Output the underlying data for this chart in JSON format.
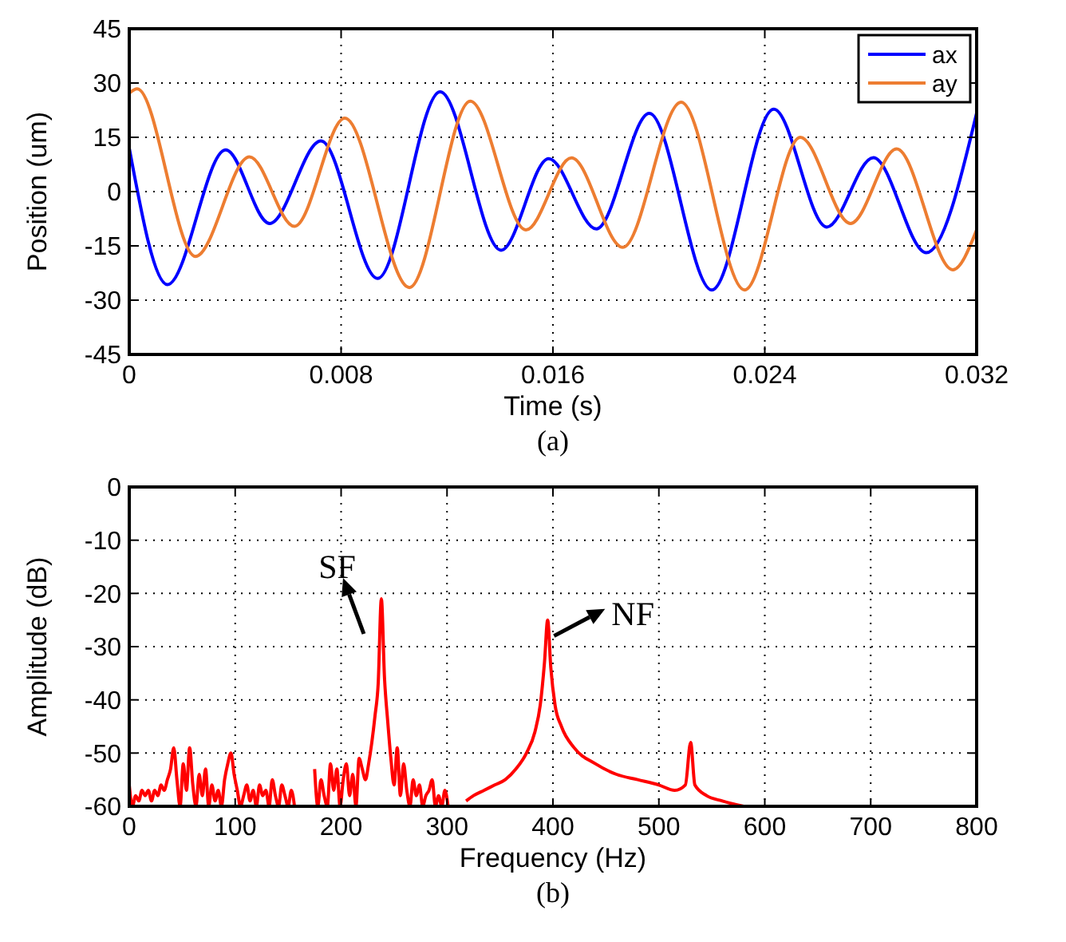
{
  "chart_data": [
    {
      "type": "line",
      "xlabel": "Time (s)",
      "ylabel": "Position (um)",
      "annotations": [
        "(a)"
      ],
      "xlim": [
        0,
        0.032
      ],
      "ylim": [
        -45,
        45
      ],
      "xticks": [
        0,
        0.008,
        0.016,
        0.024,
        0.032
      ],
      "yticks": [
        -45,
        -30,
        -15,
        0,
        15,
        30,
        45
      ],
      "grid": true,
      "legend": "top right",
      "series": [
        {
          "name": "ax",
          "color": "#0000ff",
          "x": [
            0,
            0.00144,
            0.00364,
            0.0053,
            0.00724,
            0.00938,
            0.01174,
            0.01404,
            0.01584,
            0.01764,
            0.01964,
            0.022,
            0.02434,
            0.02634,
            0.0281,
            0.0301,
            0.032
          ],
          "values": [
            12,
            -25.7,
            11.5,
            -8.8,
            14,
            -24,
            27.6,
            -16.2,
            9.1,
            -10.3,
            21.6,
            -27.2,
            22.8,
            -9.8,
            9.4,
            -16.9,
            21.7
          ]
        },
        {
          "name": "ay",
          "color": "#ed7d31",
          "x": [
            0,
            0.0003,
            0.0025,
            0.00454,
            0.00624,
            0.00814,
            0.01058,
            0.01288,
            0.01498,
            0.0167,
            0.01864,
            0.02084,
            0.02324,
            0.02534,
            0.02724,
            0.02898,
            0.0311,
            0.032
          ],
          "values": [
            27.2,
            28.4,
            -17.9,
            9.6,
            -9.6,
            20.3,
            -26.5,
            25,
            -10.6,
            9.3,
            -15.4,
            24.7,
            -27.2,
            15,
            -8.8,
            11.8,
            -21.6,
            -10.6
          ]
        }
      ]
    },
    {
      "type": "line",
      "xlabel": "Frequency (Hz)",
      "ylabel": "Amplitude (dB)",
      "annotations": [
        "(b)",
        {
          "text": "SF",
          "x": 238,
          "y": -21
        },
        {
          "text": "NF",
          "x": 395,
          "y": -25
        }
      ],
      "xlim": [
        0,
        800
      ],
      "ylim": [
        -60,
        0
      ],
      "xticks": [
        0,
        100,
        200,
        300,
        400,
        500,
        600,
        700,
        800
      ],
      "yticks": [
        -60,
        -50,
        -40,
        -30,
        -20,
        -10,
        0
      ],
      "grid": true,
      "series": [
        {
          "color": "#ff0000",
          "x": [
            0,
            3,
            6,
            9,
            12,
            15,
            18,
            21,
            24,
            27,
            30,
            33,
            36,
            39,
            42,
            45,
            48,
            51,
            54,
            57,
            60,
            63,
            66,
            69,
            72,
            75,
            78,
            81,
            84,
            87,
            90,
            93,
            96,
            99,
            102,
            105,
            108,
            111,
            114,
            117,
            120,
            123,
            126,
            129,
            132,
            135,
            138,
            141,
            144,
            147,
            150,
            153,
            156,
            165,
            175,
            178,
            181,
            184,
            187,
            190,
            193,
            196,
            199,
            202,
            205,
            208,
            211,
            214,
            217,
            220,
            223,
            226,
            229,
            232,
            235,
            238,
            241,
            244,
            247,
            250,
            253,
            256,
            259,
            262,
            265,
            268,
            271,
            274,
            277,
            280,
            283,
            286,
            289,
            292,
            295,
            298,
            301,
            310,
            318,
            325,
            335,
            345,
            355,
            365,
            375,
            383,
            388,
            392,
            395,
            398,
            402,
            408,
            420,
            440,
            460,
            480,
            500,
            515,
            525,
            530,
            534,
            545,
            560,
            580
          ],
          "values": [
            -56,
            -60,
            -58,
            -59,
            -57,
            -58,
            -57,
            -59,
            -57,
            -58,
            -56,
            -57,
            -55,
            -53,
            -49,
            -55,
            -60,
            -52,
            -57,
            -49,
            -56,
            -60,
            -54,
            -58,
            -53,
            -60,
            -56,
            -59,
            -57,
            -60,
            -55,
            -52,
            -50,
            -54,
            -57,
            -60,
            -58,
            -56,
            -59,
            -57,
            -60,
            -56,
            -58,
            -57,
            -60,
            -55,
            -58,
            -60,
            -56,
            -58,
            -60,
            -57,
            -60,
            null,
            -53,
            -60,
            -55,
            -58,
            -60,
            -52,
            -57,
            -53,
            -60,
            -55,
            -52,
            -58,
            -54,
            -60,
            -51,
            -53,
            -55,
            -52,
            -48,
            -43,
            -37,
            -21,
            -36,
            -44,
            -51,
            -56,
            -49,
            -58,
            -52,
            -57,
            -60,
            -55,
            -58,
            -56,
            -60,
            -58,
            -57,
            -55,
            -60,
            -58,
            -60,
            -57,
            -60,
            null,
            -59,
            -58,
            -57,
            -56,
            -55,
            -53,
            -50,
            -46,
            -41,
            -33,
            -25,
            -34,
            -41,
            -45,
            -49,
            -52,
            -54,
            -55,
            -56,
            -57,
            -56,
            -48,
            -56,
            -58,
            -59,
            -60
          ]
        }
      ]
    }
  ]
}
